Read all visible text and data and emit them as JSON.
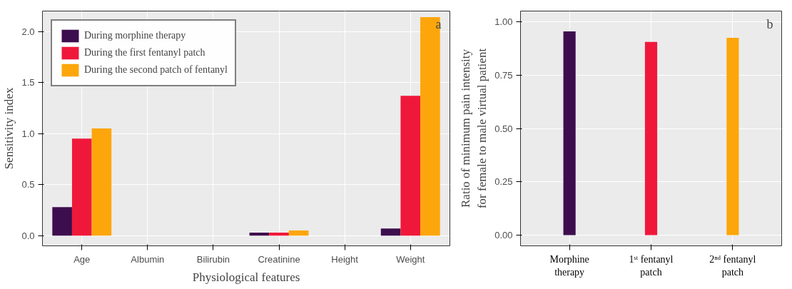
{
  "chart_data": [
    {
      "type": "bar",
      "xlabel": "Physiological features",
      "ylabel": "Sensitivity index",
      "categories": [
        "Age",
        "Albumin",
        "Bilirubin",
        "Creatinine",
        "Height",
        "Weight"
      ],
      "series": [
        {
          "name": "During morphine therapy",
          "color": "#3d0e4e",
          "values": [
            0.28,
            0,
            0,
            0.03,
            0,
            0.07
          ]
        },
        {
          "name": "During the first fentanyl patch",
          "color": "#f0183a",
          "values": [
            0.95,
            0,
            0,
            0.03,
            0,
            1.37
          ]
        },
        {
          "name": "During the second patch of fentanyl",
          "color": "#fca60b",
          "values": [
            1.05,
            0,
            0,
            0.05,
            0,
            2.14
          ]
        }
      ],
      "ylim": [
        -0.1,
        2.2
      ],
      "yticks": [
        {
          "value": 0,
          "label": "0.0"
        },
        {
          "value": 0.5,
          "label": "0.5"
        },
        {
          "value": 1,
          "label": "1.0"
        },
        {
          "value": 1.5,
          "label": "1.5"
        },
        {
          "value": 2,
          "label": "2.0"
        }
      ],
      "grid": true,
      "legend": "top left",
      "annotations": [
        "a"
      ]
    },
    {
      "type": "bar",
      "ylabel": "Ratio of minimum pain intensity for female to male virtual patient",
      "categories": [
        "Morphine therapy",
        "1ˢᵗ fentanyl patch",
        "2ⁿᵈ fentanyl patch"
      ],
      "values": [
        0.955,
        0.905,
        0.925
      ],
      "colors": [
        "#3d0e4e",
        "#f0183a",
        "#fca60b"
      ],
      "ylim": [
        -0.05,
        1.05
      ],
      "yticks": [
        {
          "value": 0,
          "label": "0.00"
        },
        {
          "value": 0.25,
          "label": "0.25"
        },
        {
          "value": 0.5,
          "label": "0.50"
        },
        {
          "value": 0.75,
          "label": "0.75"
        },
        {
          "value": 1,
          "label": "1.00"
        }
      ],
      "grid": true,
      "annotations": [
        "b"
      ]
    }
  ]
}
